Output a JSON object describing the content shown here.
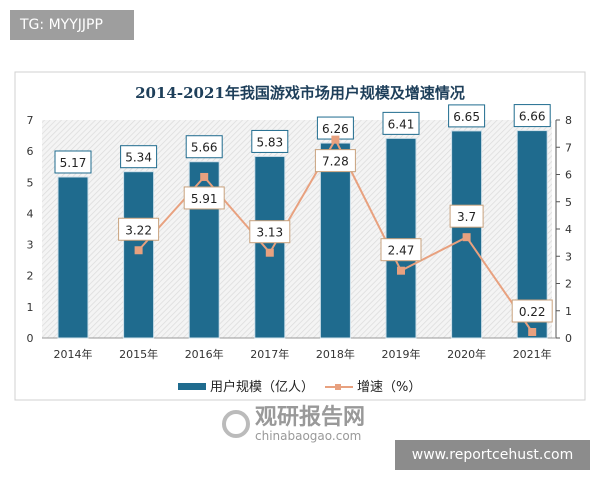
{
  "tag_label": "TG: MYYJJPP",
  "site_label": "www.reportcehust.com",
  "watermark": {
    "cn": "观研报告网",
    "en": "chinabaogao.com"
  },
  "chart_data": {
    "type": "bar+line",
    "title": "2014-2021年我国游戏市场用户规模及增速情况",
    "categories": [
      "2014年",
      "2015年",
      "2016年",
      "2017年",
      "2018年",
      "2019年",
      "2020年",
      "2021年"
    ],
    "series": [
      {
        "name": "用户规模（亿人）",
        "type": "bar",
        "axis": "left",
        "color": "#1f6b8e",
        "values": [
          5.17,
          5.34,
          5.66,
          5.83,
          6.26,
          6.41,
          6.65,
          6.66
        ]
      },
      {
        "name": "增速（%）",
        "type": "line",
        "axis": "right",
        "color": "#e8a17f",
        "values": [
          null,
          3.22,
          5.91,
          3.13,
          7.28,
          2.47,
          3.7,
          0.22
        ]
      }
    ],
    "y_left": {
      "range": [
        0,
        7
      ],
      "ticks": [
        "0",
        "1",
        "2",
        "3",
        "4",
        "5",
        "6",
        "7"
      ]
    },
    "y_right": {
      "range": [
        0,
        8
      ],
      "ticks": [
        "0",
        "1",
        "2",
        "3",
        "4",
        "5",
        "6",
        "7",
        "8"
      ]
    },
    "legend": "bottom",
    "grid": false
  }
}
